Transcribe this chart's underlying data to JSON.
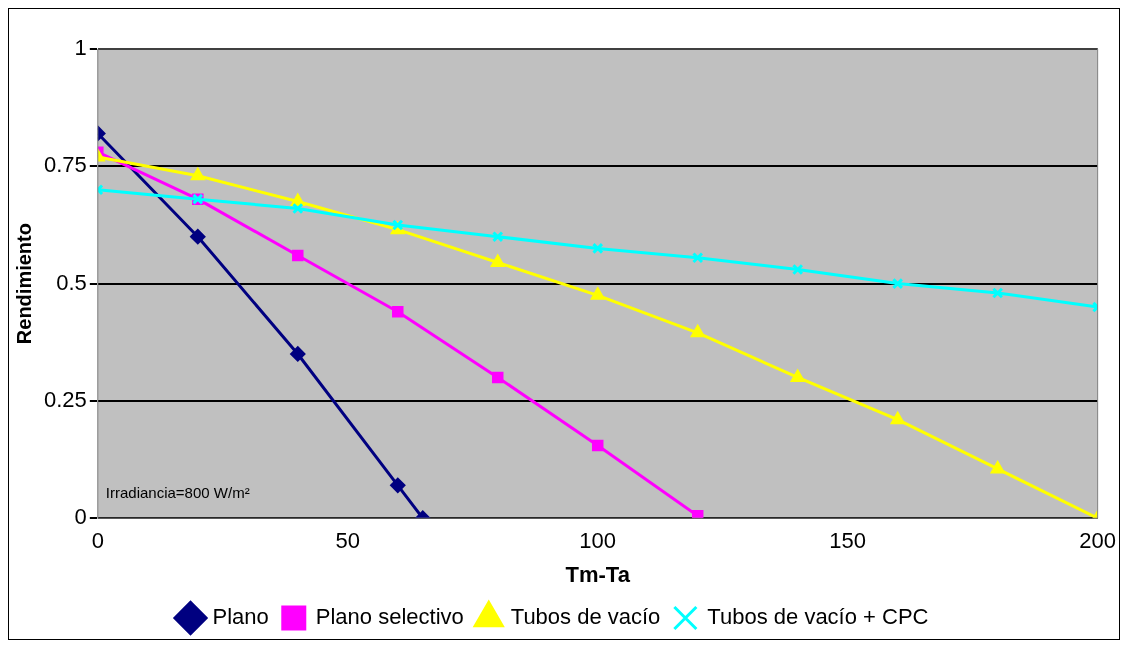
{
  "chart_data": {
    "type": "line",
    "xlabel": "Tm-Ta",
    "ylabel": "Rendimiento",
    "xlim": [
      0,
      200
    ],
    "xticks": [
      0,
      50,
      100,
      150,
      200
    ],
    "ylim": [
      0,
      1
    ],
    "yticks": [
      0,
      0.25,
      0.5,
      0.75,
      1
    ],
    "grid": "y",
    "legend": "bottom",
    "annotations": [
      "Irradiancia=800 W/m²"
    ],
    "series": [
      {
        "name": "Plano",
        "color": "#000080",
        "marker": "diamond",
        "x": [
          0,
          20,
          40,
          60,
          65
        ],
        "values": [
          0.82,
          0.6,
          0.35,
          0.07,
          0
        ]
      },
      {
        "name": "Plano selectivo",
        "color": "#ff00ff",
        "marker": "square",
        "x": [
          0,
          20,
          40,
          60,
          80,
          100,
          120
        ],
        "values": [
          0.78,
          0.68,
          0.56,
          0.44,
          0.3,
          0.155,
          0.005
        ]
      },
      {
        "name": "Tubos de vacío",
        "color": "#ffff00",
        "marker": "triangle",
        "x": [
          0,
          20,
          40,
          60,
          80,
          100,
          120,
          140,
          160,
          180,
          200
        ],
        "values": [
          0.77,
          0.73,
          0.675,
          0.615,
          0.545,
          0.475,
          0.395,
          0.3,
          0.21,
          0.105,
          0
        ]
      },
      {
        "name": "Tubos de vacío + CPC",
        "color": "#00ffff",
        "marker": "cross",
        "x": [
          0,
          20,
          40,
          60,
          80,
          100,
          120,
          140,
          160,
          180,
          200
        ],
        "values": [
          0.7,
          0.68,
          0.66,
          0.625,
          0.6,
          0.575,
          0.555,
          0.53,
          0.5,
          0.48,
          0.45
        ]
      }
    ]
  }
}
